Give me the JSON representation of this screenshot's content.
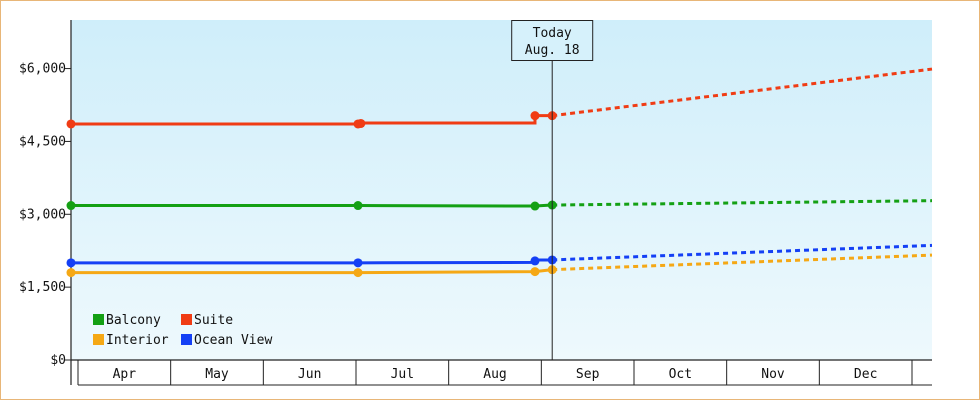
{
  "chart_data": {
    "type": "line",
    "categories": [
      "Apr",
      "May",
      "Jun",
      "Jul",
      "Aug",
      "Sep",
      "Oct",
      "Nov",
      "Dec"
    ],
    "ylim": [
      0,
      7000
    ],
    "yticks": [
      0,
      1500,
      3000,
      4500,
      6000
    ],
    "ytick_labels": [
      "$0",
      "$1,500",
      "$3,000",
      "$4,500",
      "$6,000"
    ],
    "today_marker": {
      "line1": "Today",
      "line2": "Aug. 18",
      "x": 8.53
    },
    "grid": false,
    "legend_placement": "bottom-left",
    "background_gradient": [
      "#cfeefa",
      "#eef9fd"
    ],
    "series": [
      {
        "name": "Balcony",
        "color": "#14a014",
        "history": [
          [
            3.5,
            3180
          ],
          [
            6.5,
            3180
          ],
          [
            8.35,
            3170
          ],
          [
            8.53,
            3190
          ]
        ],
        "markers": [
          [
            3.5,
            3180
          ],
          [
            6.5,
            3180
          ],
          [
            8.35,
            3170
          ],
          [
            8.53,
            3190
          ]
        ],
        "forecast": [
          [
            8.53,
            3190
          ],
          [
            12.5,
            3280
          ]
        ]
      },
      {
        "name": "Suite",
        "color": "#f03c14",
        "history": [
          [
            3.5,
            4860
          ],
          [
            6.5,
            4860
          ],
          [
            6.5,
            4880
          ],
          [
            8.35,
            4880
          ],
          [
            8.35,
            5030
          ],
          [
            8.53,
            5030
          ]
        ],
        "markers": [
          [
            3.5,
            4860
          ],
          [
            6.5,
            4860
          ],
          [
            6.53,
            4870
          ],
          [
            8.35,
            5030
          ],
          [
            8.53,
            5030
          ]
        ],
        "forecast": [
          [
            8.53,
            5030
          ],
          [
            12.5,
            5990
          ]
        ]
      },
      {
        "name": "Interior",
        "color": "#f5a815",
        "history": [
          [
            3.5,
            1800
          ],
          [
            6.5,
            1800
          ],
          [
            8.35,
            1820
          ],
          [
            8.53,
            1860
          ]
        ],
        "markers": [
          [
            3.5,
            1800
          ],
          [
            6.5,
            1800
          ],
          [
            8.35,
            1820
          ],
          [
            8.53,
            1860
          ]
        ],
        "forecast": [
          [
            8.53,
            1860
          ],
          [
            12.5,
            2160
          ]
        ]
      },
      {
        "name": "Ocean View",
        "color": "#1440f5",
        "history": [
          [
            3.5,
            2000
          ],
          [
            6.5,
            2000
          ],
          [
            8.35,
            2010
          ],
          [
            8.35,
            2060
          ],
          [
            8.53,
            2060
          ]
        ],
        "markers": [
          [
            3.5,
            2000
          ],
          [
            6.5,
            2000
          ],
          [
            8.35,
            2040
          ],
          [
            8.53,
            2060
          ]
        ],
        "forecast": [
          [
            8.53,
            2060
          ],
          [
            12.5,
            2360
          ]
        ]
      }
    ]
  }
}
